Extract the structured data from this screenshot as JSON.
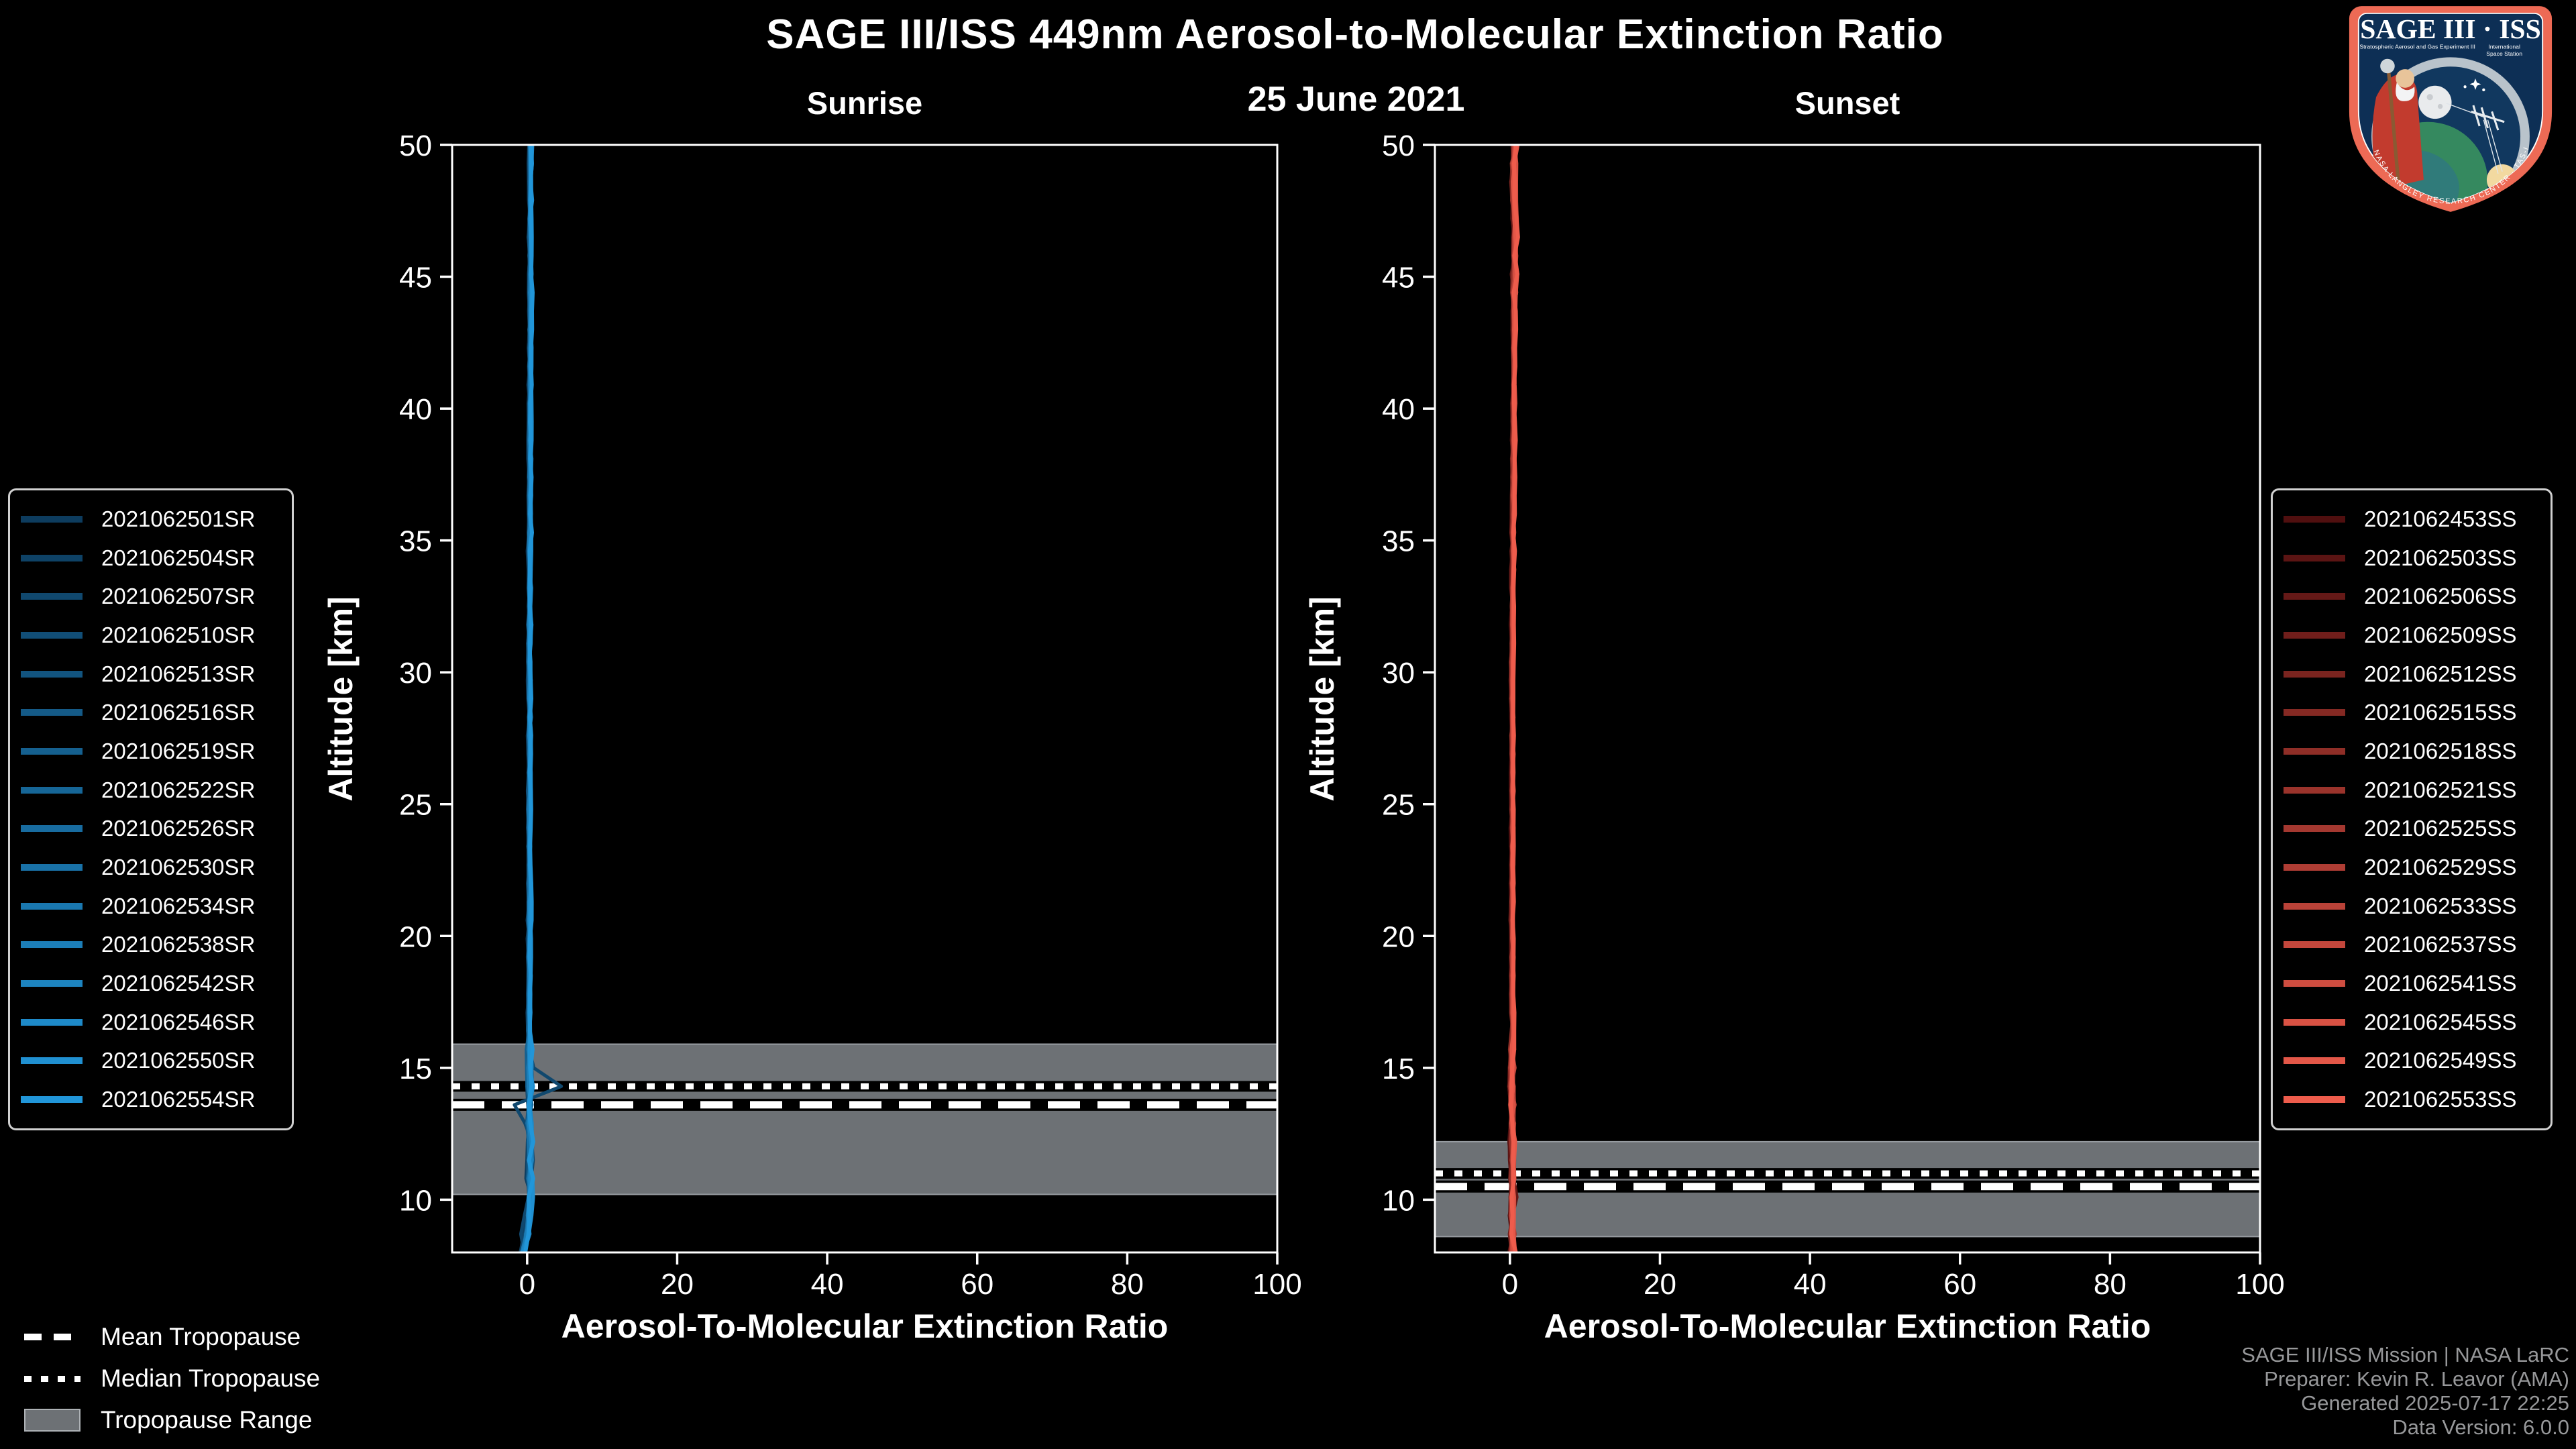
{
  "header": {
    "title": "SAGE III/ISS 449nm Aerosol-to-Molecular Extinction Ratio",
    "date": "25 June 2021"
  },
  "band_color": "#6d7175",
  "band_edge_color": "#989da2",
  "axis_color": "#ffffff",
  "overlay_legend": {
    "items": [
      {
        "label": "Mean Tropopause",
        "style": "dashed"
      },
      {
        "label": "Median Tropopause",
        "style": "dotted"
      },
      {
        "label": "Tropopause Range",
        "style": "band"
      }
    ]
  },
  "footer": {
    "color": "#97989a",
    "lines": [
      "SAGE III/ISS Mission | NASA LaRC",
      "Preparer: Kevin R. Leavor (AMA)",
      "Generated 2025-07-17 22:25",
      "Data Version: 6.0.0"
    ]
  },
  "logo": {
    "title": "SAGE III · ISS",
    "subtitle_left": "Stratospheric Aerosol and Gas Experiment III",
    "subtitle_right_line1": "International",
    "subtitle_right_line2": "Space Station",
    "ring_text": "BALL · NASA LANGLEY RESEARCH CENTER · TAS-I · ESA",
    "border_color": "#ed6a55",
    "field_color": "#0d2f55"
  },
  "chart_data": [
    {
      "type": "line",
      "panel": "Sunrise",
      "x_label": "Aerosol-To-Molecular Extinction Ratio",
      "y_label": "Altitude [km]",
      "xlim": [
        -10,
        100
      ],
      "ylim": [
        8,
        50
      ],
      "xticks": [
        0,
        20,
        40,
        60,
        80,
        100
      ],
      "yticks": [
        10,
        15,
        20,
        25,
        30,
        35,
        40,
        45,
        50
      ],
      "series_names": [
        "2021062501SR",
        "2021062504SR",
        "2021062507SR",
        "2021062510SR",
        "2021062513SR",
        "2021062516SR",
        "2021062519SR",
        "2021062522SR",
        "2021062526SR",
        "2021062530SR",
        "2021062534SR",
        "2021062538SR",
        "2021062542SR",
        "2021062546SR",
        "2021062550SR",
        "2021062554SR"
      ],
      "series_color_start": "#0d3c5e",
      "series_color_end": "#2196d9",
      "typical_profile_x_alt": [
        [
          -0.5,
          8
        ],
        [
          0.2,
          9
        ],
        [
          0.4,
          10
        ],
        [
          0.3,
          11
        ],
        [
          0.5,
          12
        ],
        [
          0.2,
          13
        ],
        [
          0.4,
          14
        ],
        [
          0.3,
          15
        ],
        [
          0.2,
          16
        ],
        [
          0.3,
          18
        ],
        [
          0.3,
          20
        ],
        [
          0.3,
          24
        ],
        [
          0.3,
          28
        ],
        [
          0.3,
          32
        ],
        [
          0.35,
          36
        ],
        [
          0.4,
          40
        ],
        [
          0.45,
          44
        ],
        [
          0.4,
          47
        ],
        [
          0.45,
          50
        ]
      ],
      "outlier_series_index": 2,
      "outlier_profile_x_alt": [
        [
          -0.3,
          8
        ],
        [
          -0.8,
          8.6
        ],
        [
          -0.2,
          9.5
        ],
        [
          0.6,
          10.5
        ],
        [
          0.9,
          11.5
        ],
        [
          0.7,
          12.3
        ],
        [
          -0.2,
          12.9
        ],
        [
          -2.3,
          13.4
        ],
        [
          -0.6,
          13.85
        ],
        [
          5.0,
          14.25
        ],
        [
          1.5,
          14.7
        ],
        [
          0.6,
          15.2
        ],
        [
          0.3,
          16
        ],
        [
          0.3,
          17
        ]
      ],
      "tropopause": {
        "mean_km": 13.6,
        "median_km": 14.3,
        "range_km": [
          10.2,
          15.9
        ]
      }
    },
    {
      "type": "line",
      "panel": "Sunset",
      "x_label": "Aerosol-To-Molecular Extinction Ratio",
      "y_label": "Altitude [km]",
      "xlim": [
        -10,
        100
      ],
      "ylim": [
        8,
        50
      ],
      "xticks": [
        0,
        20,
        40,
        60,
        80,
        100
      ],
      "yticks": [
        10,
        15,
        20,
        25,
        30,
        35,
        40,
        45,
        50
      ],
      "series_names": [
        "2021062453SS",
        "2021062503SS",
        "2021062506SS",
        "2021062509SS",
        "2021062512SS",
        "2021062515SS",
        "2021062518SS",
        "2021062521SS",
        "2021062525SS",
        "2021062529SS",
        "2021062533SS",
        "2021062537SS",
        "2021062541SS",
        "2021062545SS",
        "2021062549SS",
        "2021062553SS"
      ],
      "series_color_start": "#500f0f",
      "series_color_end": "#ee5c4c",
      "typical_profile_x_alt": [
        [
          0.3,
          8
        ],
        [
          0.4,
          9
        ],
        [
          0.3,
          10
        ],
        [
          0.35,
          11
        ],
        [
          0.3,
          12
        ],
        [
          0.3,
          14
        ],
        [
          0.3,
          16
        ],
        [
          0.3,
          20
        ],
        [
          0.35,
          25
        ],
        [
          0.3,
          30
        ],
        [
          0.4,
          35
        ],
        [
          0.5,
          40
        ],
        [
          0.55,
          44
        ],
        [
          0.7,
          47
        ],
        [
          0.4,
          49
        ],
        [
          0.7,
          50
        ]
      ],
      "outlier_series_index": 2,
      "outlier_profile_x_alt": [
        [
          0.3,
          8
        ],
        [
          0.5,
          9.6
        ],
        [
          1.4,
          10.4
        ],
        [
          0.4,
          10.9
        ],
        [
          0.3,
          12
        ]
      ],
      "tropopause": {
        "mean_km": 10.5,
        "median_km": 11.0,
        "range_km": [
          8.6,
          12.2
        ]
      }
    }
  ]
}
